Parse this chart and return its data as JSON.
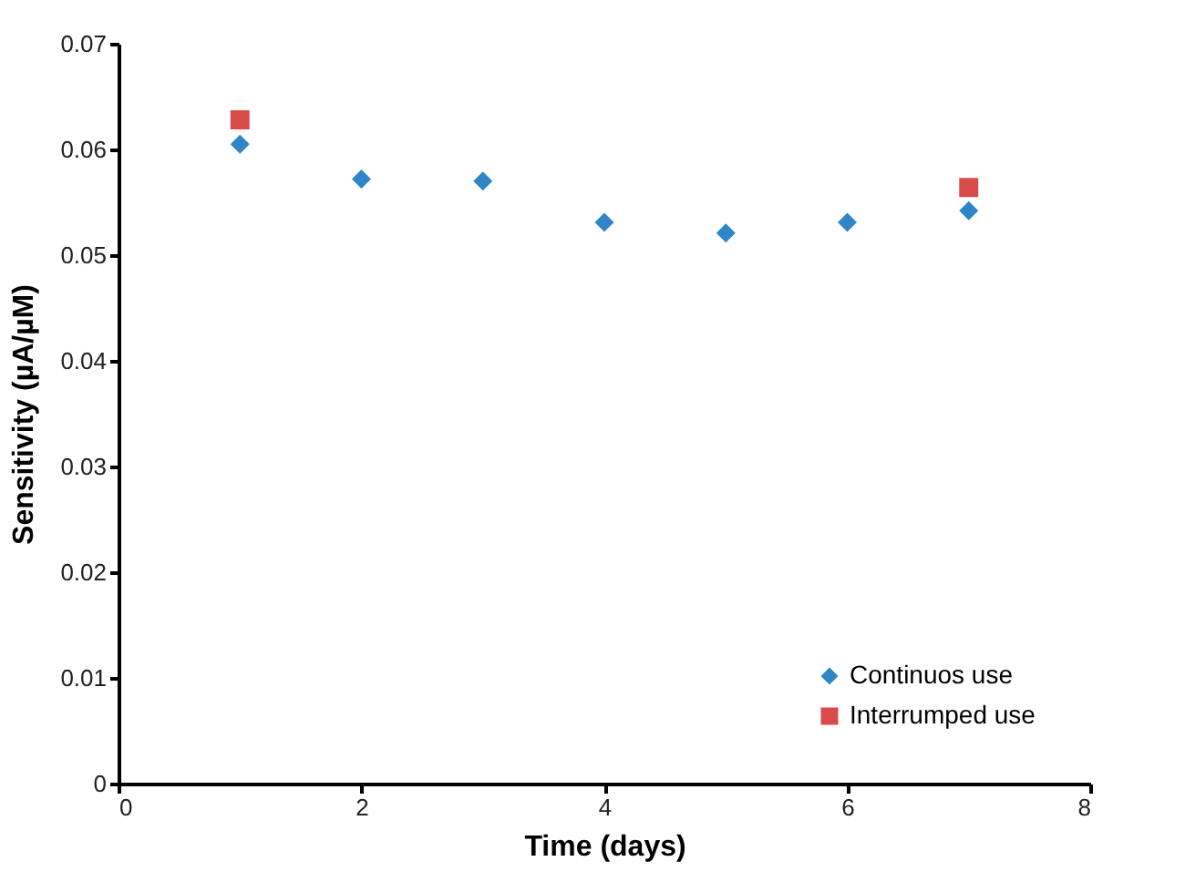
{
  "chart_data": {
    "type": "scatter",
    "xlabel": "Time (days)",
    "ylabel": "Sensitivity (µA/µM)",
    "xlim": [
      0,
      8
    ],
    "xticks": [
      0,
      2,
      4,
      6,
      8
    ],
    "ylim": [
      0,
      0.07
    ],
    "yticks": [
      0,
      0.01,
      0.02,
      0.03,
      0.04,
      0.05,
      0.06,
      0.07
    ],
    "grid": false,
    "legend": "bottom right",
    "series": [
      {
        "name": "Continuos use",
        "color": "#2e86c8",
        "marker": "diamond",
        "x": [
          1,
          2,
          3,
          4,
          5,
          6,
          7
        ],
        "values": [
          0.0605,
          0.0572,
          0.057,
          0.0531,
          0.0521,
          0.0531,
          0.0542
        ]
      },
      {
        "name": "Interrumped use",
        "color": "#d94a4a",
        "marker": "square",
        "x": [
          1,
          7
        ],
        "values": [
          0.0628,
          0.0564
        ]
      }
    ]
  }
}
